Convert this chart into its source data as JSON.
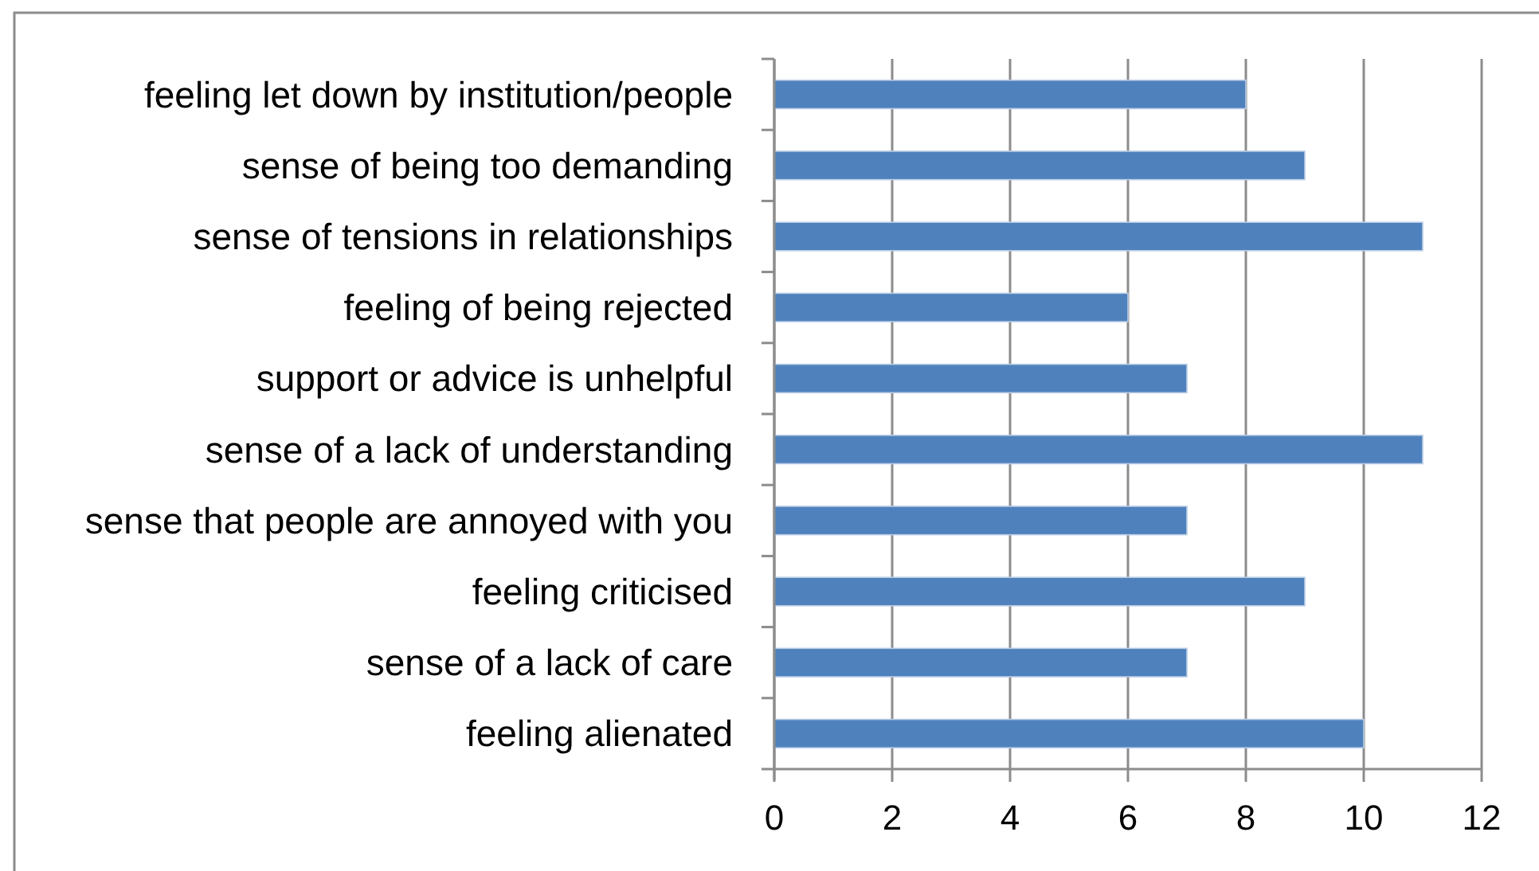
{
  "chart_data": {
    "type": "bar",
    "orientation": "horizontal",
    "categories": [
      "feeling let down by institution/people",
      "sense of being too demanding",
      "sense of tensions in relationships",
      "feeling of being rejected",
      "support or advice is unhelpful",
      "sense of a lack of understanding",
      "sense that people are annoyed with you",
      "feeling criticised",
      "sense of a lack of care",
      "feeling alienated"
    ],
    "values": [
      8,
      9,
      11,
      6,
      7,
      11,
      7,
      9,
      7,
      10
    ],
    "color": "#4f81bd",
    "xlim": [
      0,
      12
    ],
    "xticks": [
      0,
      2,
      4,
      6,
      8,
      10,
      12
    ],
    "grid": "x"
  }
}
